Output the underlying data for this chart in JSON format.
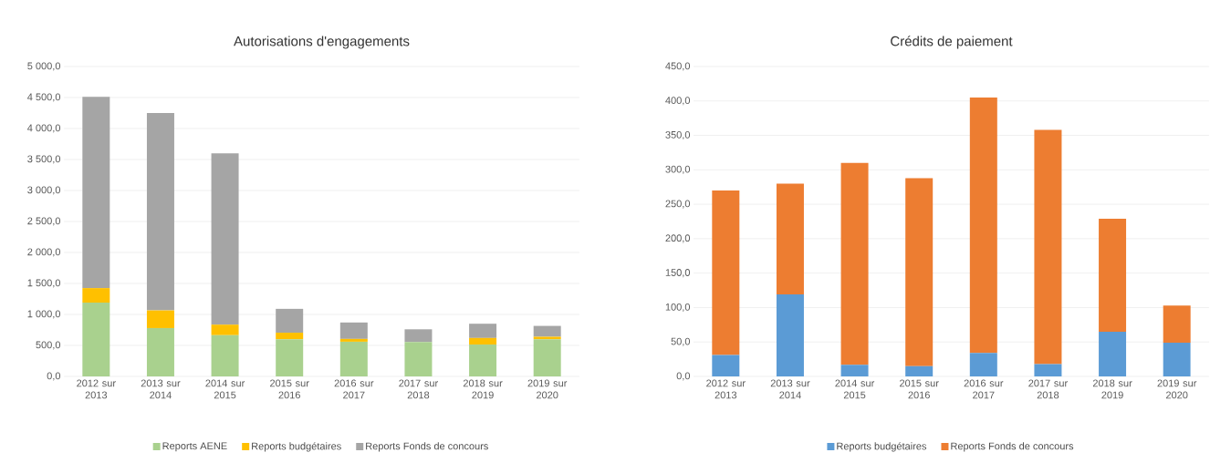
{
  "chart_data": [
    {
      "type": "bar",
      "title": "Autorisations d'engagements",
      "stacked": true,
      "grid": "y",
      "legend": "bottom",
      "categories": [
        "2012 sur 2013",
        "2013 sur 2014",
        "2014 sur 2015",
        "2015 sur 2016",
        "2016 sur 2017",
        "2017 sur 2018",
        "2018 sur 2019",
        "2019 sur 2020"
      ],
      "series": [
        {
          "name": "Reports AENE",
          "color": "#a9d18e",
          "values": [
            1190,
            780,
            665,
            600,
            560,
            555,
            515,
            600
          ]
        },
        {
          "name": "Reports budgétaires",
          "color": "#ffc000",
          "values": [
            235,
            285,
            170,
            105,
            45,
            null,
            105,
            40
          ]
        },
        {
          "name": "Reports Fonds de concours",
          "color": "#a5a5a5",
          "values": [
            3085,
            3185,
            2765,
            385,
            265,
            205,
            230,
            175
          ]
        }
      ],
      "ylim": [
        0,
        5000
      ],
      "yticks": [
        {
          "value": 0,
          "label": "0,0"
        },
        {
          "value": 500,
          "label": "500,0"
        },
        {
          "value": 1000,
          "label": "1 000,0"
        },
        {
          "value": 1500,
          "label": "1 500,0"
        },
        {
          "value": 2000,
          "label": "2 000,0"
        },
        {
          "value": 2500,
          "label": "2 500,0"
        },
        {
          "value": 3000,
          "label": "3 000,0"
        },
        {
          "value": 3500,
          "label": "3 500,0"
        },
        {
          "value": 4000,
          "label": "4 000,0"
        },
        {
          "value": 4500,
          "label": "4 500,0"
        },
        {
          "value": 5000,
          "label": "5 000,0"
        }
      ]
    },
    {
      "type": "bar",
      "title": "Crédits de paiement",
      "stacked": true,
      "grid": "y",
      "legend": "bottom",
      "categories": [
        "2012 sur 2013",
        "2013 sur 2014",
        "2014 sur 2015",
        "2015 sur 2016",
        "2016 sur 2017",
        "2017 sur 2018",
        "2018 sur 2019",
        "2019 sur 2020"
      ],
      "series": [
        {
          "name": "Reports budgétaires",
          "color": "#5b9bd5",
          "values": [
            31,
            119,
            17,
            15,
            34,
            18,
            65,
            49
          ]
        },
        {
          "name": "Reports Fonds de concours",
          "color": "#ed7d31",
          "values": [
            239,
            161,
            293,
            273,
            371,
            340,
            164,
            54
          ]
        }
      ],
      "ylim": [
        0,
        450
      ],
      "yticks": [
        {
          "value": 0,
          "label": "0,0"
        },
        {
          "value": 50,
          "label": "50,0"
        },
        {
          "value": 100,
          "label": "100,0"
        },
        {
          "value": 150,
          "label": "150,0"
        },
        {
          "value": 200,
          "label": "200,0"
        },
        {
          "value": 250,
          "label": "250,0"
        },
        {
          "value": 300,
          "label": "300,0"
        },
        {
          "value": 350,
          "label": "350,0"
        },
        {
          "value": 400,
          "label": "400,0"
        },
        {
          "value": 450,
          "label": "450,0"
        }
      ]
    }
  ]
}
